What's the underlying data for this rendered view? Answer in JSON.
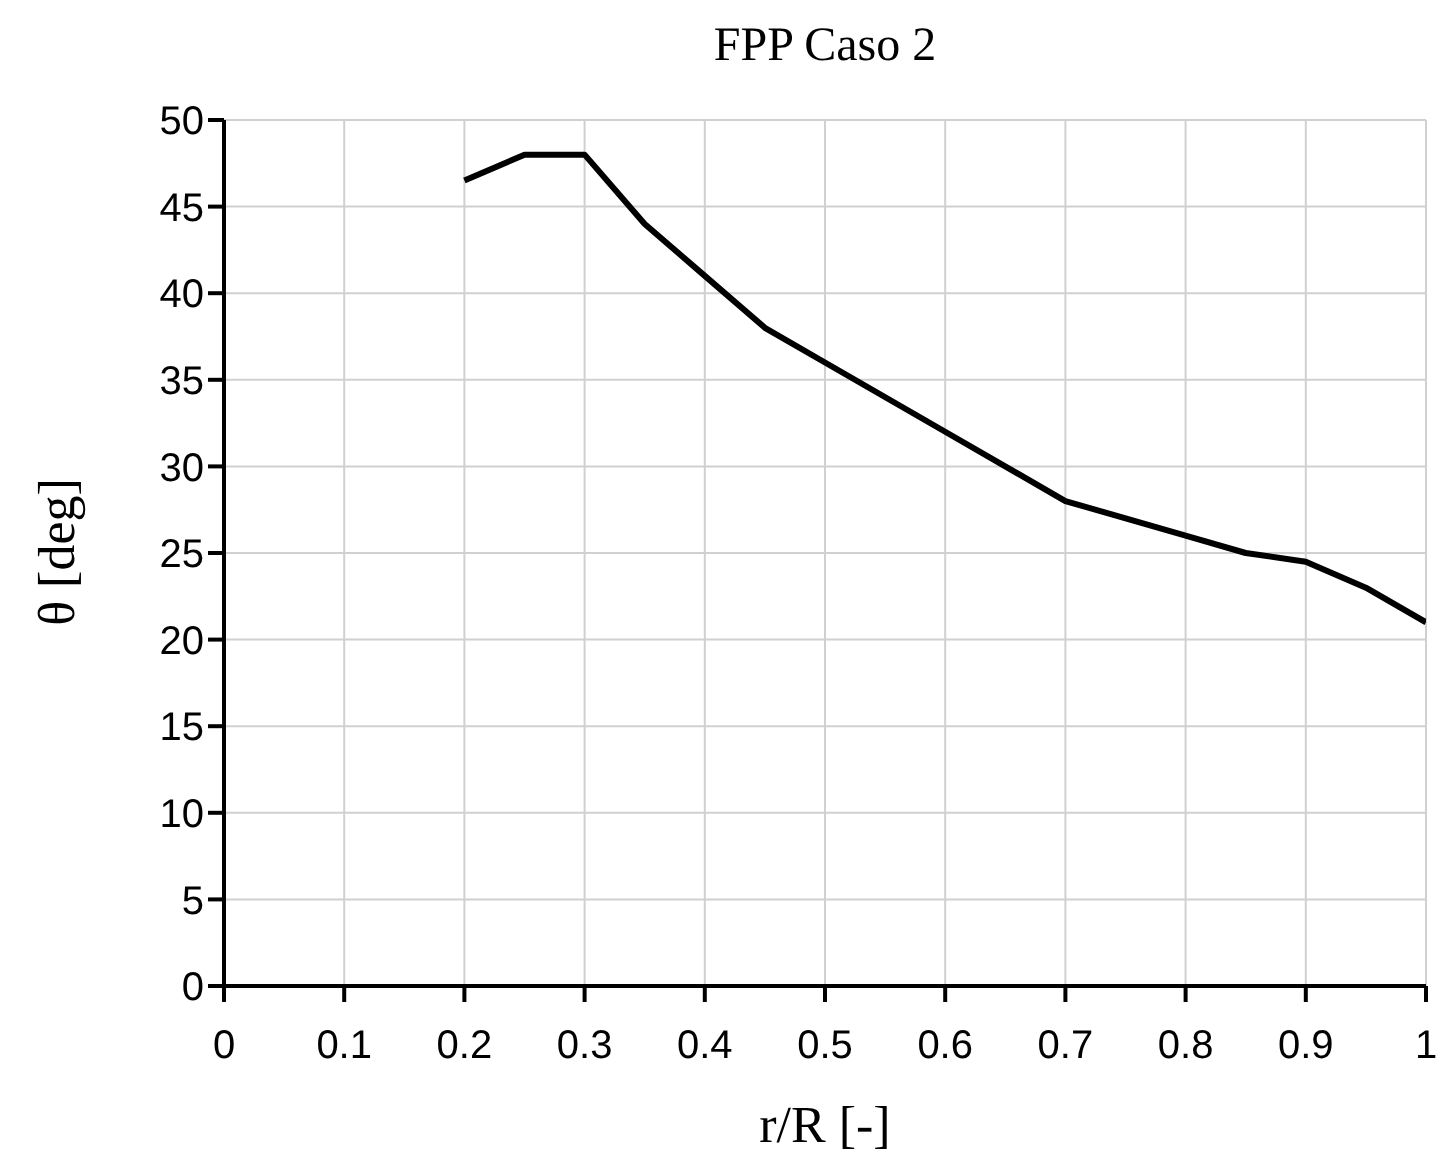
{
  "chart_data": {
    "type": "line",
    "title": "FPP Caso 2",
    "xlabel": "r/R [-]",
    "ylabel": "θ [deg]",
    "x": [
      0.2,
      0.25,
      0.3,
      0.35,
      0.4,
      0.45,
      0.5,
      0.6,
      0.7,
      0.8,
      0.85,
      0.9,
      0.95,
      1
    ],
    "series": [
      {
        "color": "#000000",
        "values": [
          46.5,
          48,
          48,
          44,
          41,
          38,
          36,
          32,
          28,
          26,
          25,
          24.5,
          23,
          21
        ]
      }
    ],
    "xlim": [
      0,
      1
    ],
    "xticks": [
      0,
      0.1,
      0.2,
      0.3,
      0.4,
      0.5,
      0.6,
      0.7,
      0.8,
      0.9,
      1
    ],
    "ylim": [
      0,
      50
    ],
    "yticks": [
      0,
      5,
      10,
      15,
      20,
      25,
      30,
      35,
      40,
      45,
      50
    ],
    "grid": true,
    "marker": "none",
    "line_style": "solid"
  }
}
